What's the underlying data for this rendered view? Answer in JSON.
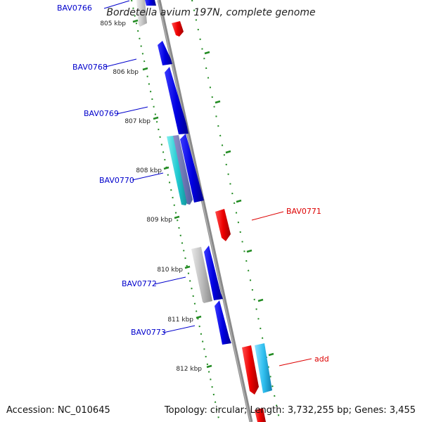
{
  "header": {
    "title": "Bordetella avium 197N, complete genome"
  },
  "footer": {
    "accession": "Accession: NC_010645",
    "summary": "Topology: circular; Length: 3,732,255 bp; Genes: 3,455"
  },
  "scale_labels": [
    "805 kbp",
    "806 kbp",
    "807 kbp",
    "808 kbp",
    "809 kbp",
    "810 kbp",
    "811 kbp",
    "812 kbp"
  ],
  "gene_labels": [
    {
      "id": "BAV0766",
      "strand": "reverse"
    },
    {
      "id": "BAV0768",
      "strand": "reverse"
    },
    {
      "id": "BAV0769",
      "strand": "reverse"
    },
    {
      "id": "BAV0770",
      "strand": "reverse"
    },
    {
      "id": "BAV0771",
      "strand": "forward"
    },
    {
      "id": "BAV0772",
      "strand": "reverse"
    },
    {
      "id": "BAV0773",
      "strand": "reverse"
    },
    {
      "id": "add",
      "strand": "forward"
    }
  ],
  "colors": {
    "backbone": "#8a8a8a",
    "reverse_gene": "#0000dd",
    "forward_gene": "#ee0000",
    "cyan_gene": "#20c8d0",
    "light_blue_gene": "#30c0f0",
    "gray_gene": "#b8b8b8",
    "tick": "#228b22",
    "reverse_label": "#0000cc",
    "forward_label": "#dd0000"
  }
}
